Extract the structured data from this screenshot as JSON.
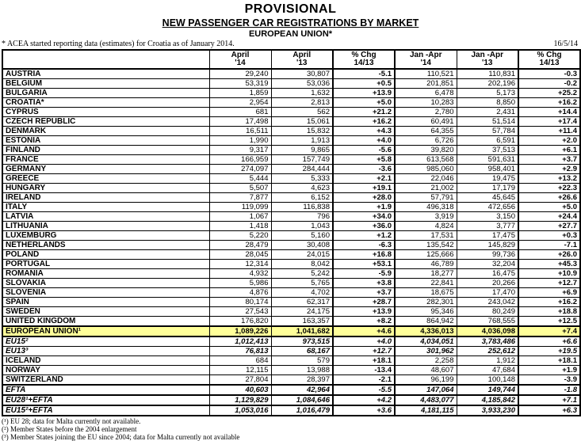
{
  "header": {
    "title": "PROVISIONAL",
    "subtitle": "NEW PASSENGER CAR REGISTRATIONS BY MARKET",
    "region": "EUROPEAN UNION*",
    "note": "* ACEA started reporting data (estimates) for Croatia as of January 2014.",
    "date": "16/5/14"
  },
  "table": {
    "columns": [
      {
        "l1": "April",
        "l2": "'14"
      },
      {
        "l1": "April",
        "l2": "'13"
      },
      {
        "l1": "% Chg",
        "l2": "14/13"
      },
      {
        "l1": "Jan -Apr",
        "l2": "'14"
      },
      {
        "l1": "Jan -Apr",
        "l2": "'13"
      },
      {
        "l1": "% Chg",
        "l2": "14/13"
      }
    ],
    "rows": [
      {
        "name": "AUSTRIA",
        "style": "country",
        "values": [
          "29,240",
          "30,807",
          "-5.1",
          "110,521",
          "110,831",
          "-0.3"
        ]
      },
      {
        "name": "BELGIUM",
        "style": "country",
        "values": [
          "53,319",
          "53,036",
          "+0.5",
          "201,851",
          "202,196",
          "-0.2"
        ]
      },
      {
        "name": "BULGARIA",
        "style": "country",
        "values": [
          "1,859",
          "1,632",
          "+13.9",
          "6,478",
          "5,173",
          "+25.2"
        ]
      },
      {
        "name": "CROATIA*",
        "style": "country",
        "values": [
          "2,954",
          "2,813",
          "+5.0",
          "10,283",
          "8,850",
          "+16.2"
        ]
      },
      {
        "name": "CYPRUS",
        "style": "country",
        "values": [
          "681",
          "562",
          "+21.2",
          "2,780",
          "2,431",
          "+14.4"
        ]
      },
      {
        "name": "CZECH REPUBLIC",
        "style": "country",
        "values": [
          "17,498",
          "15,061",
          "+16.2",
          "60,491",
          "51,514",
          "+17.4"
        ]
      },
      {
        "name": "DENMARK",
        "style": "country",
        "values": [
          "16,511",
          "15,832",
          "+4.3",
          "64,355",
          "57,784",
          "+11.4"
        ]
      },
      {
        "name": "ESTONIA",
        "style": "country",
        "values": [
          "1,990",
          "1,913",
          "+4.0",
          "6,726",
          "6,591",
          "+2.0"
        ]
      },
      {
        "name": "FINLAND",
        "style": "country",
        "values": [
          "9,317",
          "9,865",
          "-5.6",
          "39,820",
          "37,513",
          "+6.1"
        ]
      },
      {
        "name": "FRANCE",
        "style": "country",
        "values": [
          "166,959",
          "157,749",
          "+5.8",
          "613,568",
          "591,631",
          "+3.7"
        ]
      },
      {
        "name": "GERMANY",
        "style": "country",
        "values": [
          "274,097",
          "284,444",
          "-3.6",
          "985,060",
          "958,401",
          "+2.9"
        ]
      },
      {
        "name": "GREECE",
        "style": "country",
        "values": [
          "5,444",
          "5,333",
          "+2.1",
          "22,046",
          "19,475",
          "+13.2"
        ]
      },
      {
        "name": "HUNGARY",
        "style": "country",
        "values": [
          "5,507",
          "4,623",
          "+19.1",
          "21,002",
          "17,179",
          "+22.3"
        ]
      },
      {
        "name": "IRELAND",
        "style": "country",
        "values": [
          "7,877",
          "6,152",
          "+28.0",
          "57,791",
          "45,645",
          "+26.6"
        ]
      },
      {
        "name": "ITALY",
        "style": "country",
        "values": [
          "119,099",
          "116,838",
          "+1.9",
          "496,318",
          "472,656",
          "+5.0"
        ]
      },
      {
        "name": "LATVIA",
        "style": "country",
        "values": [
          "1,067",
          "796",
          "+34.0",
          "3,919",
          "3,150",
          "+24.4"
        ]
      },
      {
        "name": "LITHUANIA",
        "style": "country",
        "values": [
          "1,418",
          "1,043",
          "+36.0",
          "4,824",
          "3,777",
          "+27.7"
        ]
      },
      {
        "name": "LUXEMBURG",
        "style": "country",
        "values": [
          "5,220",
          "5,160",
          "+1.2",
          "17,531",
          "17,475",
          "+0.3"
        ]
      },
      {
        "name": "NETHERLANDS",
        "style": "country",
        "values": [
          "28,479",
          "30,408",
          "-6.3",
          "135,542",
          "145,829",
          "-7.1"
        ]
      },
      {
        "name": "POLAND",
        "style": "country",
        "values": [
          "28,045",
          "24,015",
          "+16.8",
          "125,666",
          "99,736",
          "+26.0"
        ]
      },
      {
        "name": "PORTUGAL",
        "style": "country",
        "values": [
          "12,314",
          "8,042",
          "+53.1",
          "46,789",
          "32,204",
          "+45.3"
        ]
      },
      {
        "name": "ROMANIA",
        "style": "country",
        "values": [
          "4,932",
          "5,242",
          "-5.9",
          "18,277",
          "16,475",
          "+10.9"
        ]
      },
      {
        "name": "SLOVAKIA",
        "style": "country",
        "values": [
          "5,986",
          "5,765",
          "+3.8",
          "22,841",
          "20,266",
          "+12.7"
        ]
      },
      {
        "name": "SLOVENIA",
        "style": "country",
        "values": [
          "4,876",
          "4,702",
          "+3.7",
          "18,675",
          "17,470",
          "+6.9"
        ]
      },
      {
        "name": "SPAIN",
        "style": "country",
        "values": [
          "80,174",
          "62,317",
          "+28.7",
          "282,301",
          "243,042",
          "+16.2"
        ]
      },
      {
        "name": "SWEDEN",
        "style": "country",
        "values": [
          "27,543",
          "24,175",
          "+13.9",
          "95,346",
          "80,249",
          "+18.8"
        ]
      },
      {
        "name": "UNITED KINGDOM",
        "style": "country",
        "values": [
          "176,820",
          "163,357",
          "+8.2",
          "864,942",
          "768,555",
          "+12.5"
        ]
      },
      {
        "name": "EUROPEAN UNION¹",
        "style": "eu",
        "values": [
          "1,089,226",
          "1,041,682",
          "+4.6",
          "4,336,013",
          "4,036,098",
          "+7.4"
        ]
      },
      {
        "name": "EU15²",
        "style": "summary",
        "values": [
          "1,012,413",
          "973,515",
          "+4.0",
          "4,034,051",
          "3,783,486",
          "+6.6"
        ]
      },
      {
        "name": "EU13³",
        "style": "summary",
        "values": [
          "76,813",
          "68,167",
          "+12.7",
          "301,962",
          "252,612",
          "+19.5"
        ]
      },
      {
        "name": "ICELAND",
        "style": "country",
        "values": [
          "684",
          "579",
          "+18.1",
          "2,258",
          "1,912",
          "+18.1"
        ]
      },
      {
        "name": "NORWAY",
        "style": "country",
        "values": [
          "12,115",
          "13,988",
          "-13.4",
          "48,607",
          "47,684",
          "+1.9"
        ]
      },
      {
        "name": "SWITZERLAND",
        "style": "country",
        "values": [
          "27,804",
          "28,397",
          "-2.1",
          "96,199",
          "100,148",
          "-3.9"
        ]
      },
      {
        "name": "EFTA",
        "style": "box",
        "values": [
          "40,603",
          "42,964",
          "-5.5",
          "147,064",
          "149,744",
          "-1.8"
        ]
      },
      {
        "name": "EU28¹+EFTA",
        "style": "box",
        "values": [
          "1,129,829",
          "1,084,646",
          "+4.2",
          "4,483,077",
          "4,185,842",
          "+7.1"
        ]
      },
      {
        "name": "EU15²+EFTA",
        "style": "box",
        "values": [
          "1,053,016",
          "1,016,479",
          "+3.6",
          "4,181,115",
          "3,933,230",
          "+6.3"
        ]
      }
    ]
  },
  "footnotes": [
    "(¹) EU 28; data for Malta currently not available.",
    "(²) Member States before the 2004 enlargement",
    "(³) Member States joining the EU since 2004; data for Malta currently not available"
  ]
}
